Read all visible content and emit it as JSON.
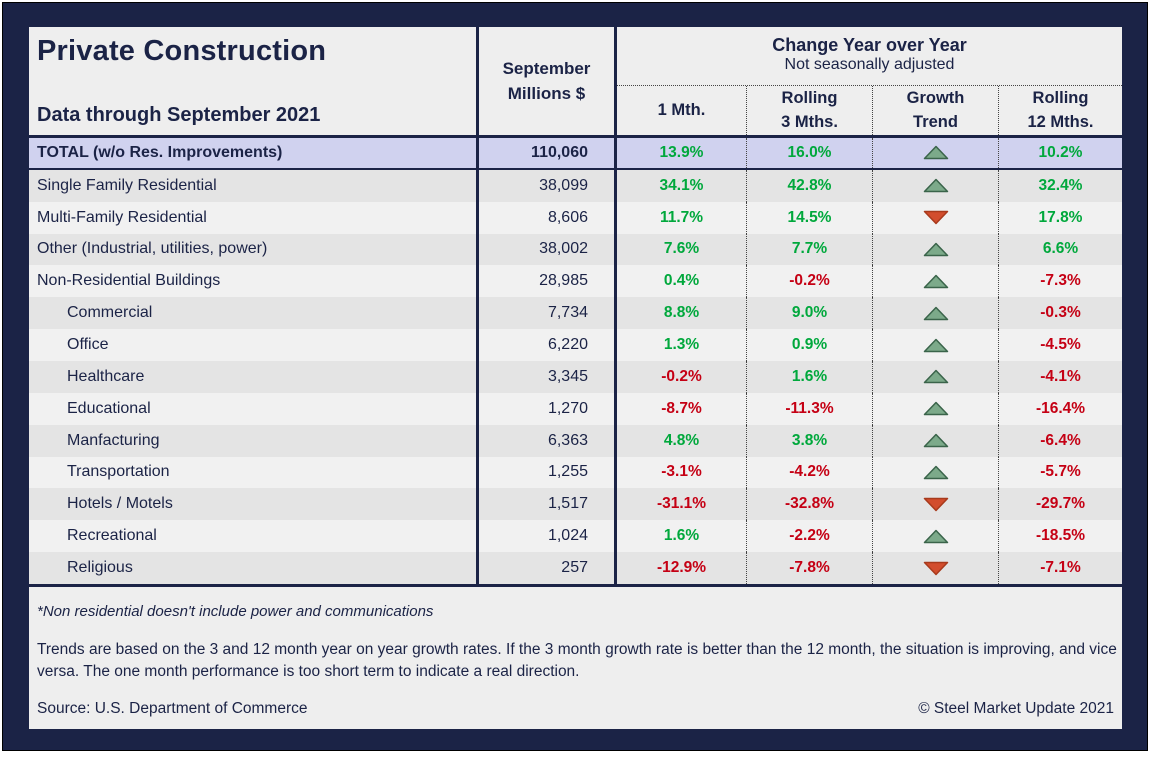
{
  "meta": {
    "title": "Private Construction",
    "subtitle": "Data through September 2021"
  },
  "columns": {
    "month_header": "September\nMillions $",
    "change_title": "Change Year over Year",
    "change_subtitle": "Not seasonally adjusted",
    "sub": [
      "1 Mth.",
      "Rolling\n3 Mths.",
      "Growth\nTrend",
      "Rolling\n12 Mths."
    ]
  },
  "rows": [
    {
      "label": "TOTAL (w/o Res. Improvements)",
      "indent": false,
      "style": "total",
      "value": "110,060",
      "m1": "13.9%",
      "m1c": "pos",
      "m3": "16.0%",
      "m3c": "pos",
      "trend": "up",
      "m12": "10.2%",
      "m12c": "pos"
    },
    {
      "label": "Single Family Residential",
      "indent": false,
      "value": "38,099",
      "m1": "34.1%",
      "m1c": "pos",
      "m3": "42.8%",
      "m3c": "pos",
      "trend": "up",
      "m12": "32.4%",
      "m12c": "pos"
    },
    {
      "label": "Multi-Family Residential",
      "indent": false,
      "value": "8,606",
      "m1": "11.7%",
      "m1c": "pos",
      "m3": "14.5%",
      "m3c": "pos",
      "trend": "down",
      "m12": "17.8%",
      "m12c": "pos"
    },
    {
      "label": "Other (Industrial, utilities, power)",
      "indent": false,
      "value": "38,002",
      "m1": "7.6%",
      "m1c": "pos",
      "m3": "7.7%",
      "m3c": "pos",
      "trend": "up",
      "m12": "6.6%",
      "m12c": "pos"
    },
    {
      "label": "Non-Residential Buildings",
      "indent": false,
      "value": "28,985",
      "m1": "0.4%",
      "m1c": "pos",
      "m3": "-0.2%",
      "m3c": "neg",
      "trend": "up",
      "m12": "-7.3%",
      "m12c": "neg"
    },
    {
      "label": "Commercial",
      "indent": true,
      "value": "7,734",
      "m1": "8.8%",
      "m1c": "pos",
      "m3": "9.0%",
      "m3c": "pos",
      "trend": "up",
      "m12": "-0.3%",
      "m12c": "neg"
    },
    {
      "label": "Office",
      "indent": true,
      "value": "6,220",
      "m1": "1.3%",
      "m1c": "pos",
      "m3": "0.9%",
      "m3c": "pos",
      "trend": "up",
      "m12": "-4.5%",
      "m12c": "neg"
    },
    {
      "label": "Healthcare",
      "indent": true,
      "value": "3,345",
      "m1": "-0.2%",
      "m1c": "neg",
      "m3": "1.6%",
      "m3c": "pos",
      "trend": "up",
      "m12": "-4.1%",
      "m12c": "neg"
    },
    {
      "label": "Educational",
      "indent": true,
      "value": "1,270",
      "m1": "-8.7%",
      "m1c": "neg",
      "m3": "-11.3%",
      "m3c": "neg",
      "trend": "up",
      "m12": "-16.4%",
      "m12c": "neg"
    },
    {
      "label": "Manfacturing",
      "indent": true,
      "value": "6,363",
      "m1": "4.8%",
      "m1c": "pos",
      "m3": "3.8%",
      "m3c": "pos",
      "trend": "up",
      "m12": "-6.4%",
      "m12c": "neg"
    },
    {
      "label": "Transportation",
      "indent": true,
      "value": "1,255",
      "m1": "-3.1%",
      "m1c": "neg",
      "m3": "-4.2%",
      "m3c": "neg",
      "trend": "up",
      "m12": "-5.7%",
      "m12c": "neg"
    },
    {
      "label": "Hotels / Motels",
      "indent": true,
      "value": "1,517",
      "m1": "-31.1%",
      "m1c": "neg",
      "m3": "-32.8%",
      "m3c": "neg",
      "trend": "down",
      "m12": "-29.7%",
      "m12c": "neg"
    },
    {
      "label": "Recreational",
      "indent": true,
      "value": "1,024",
      "m1": "1.6%",
      "m1c": "pos",
      "m3": "-2.2%",
      "m3c": "neg",
      "trend": "up",
      "m12": "-18.5%",
      "m12c": "neg"
    },
    {
      "label": "Religious",
      "indent": true,
      "value": "257",
      "m1": "-12.9%",
      "m1c": "neg",
      "m3": "-7.8%",
      "m3c": "neg",
      "trend": "down",
      "m12": "-7.1%",
      "m12c": "neg"
    }
  ],
  "footer": {
    "footnote": "*Non residential doesn't include power and communications",
    "trends_note": "Trends are based on the 3 and 12 month year on year growth rates. If the 3 month growth rate is better than the 12 month, the situation is improving, and vice versa. The one month performance is too short term to indicate a real direction.",
    "source": "Source: U.S. Department of Commerce",
    "copyright": "© Steel Market Update 2021"
  },
  "colors": {
    "navy": "#1b2346",
    "panel_bg": "#eeeeee",
    "row_dark": "#e4e4e4",
    "row_light": "#f1f1f1",
    "total_row_bg": "#d0d2ef",
    "green": "#00a83c",
    "red": "#c50014",
    "arrow_up_fill": "#7caa8a",
    "arrow_up_stroke": "#3a644a",
    "arrow_down_fill": "#d24d2d",
    "arrow_down_stroke": "#a83a1c"
  }
}
